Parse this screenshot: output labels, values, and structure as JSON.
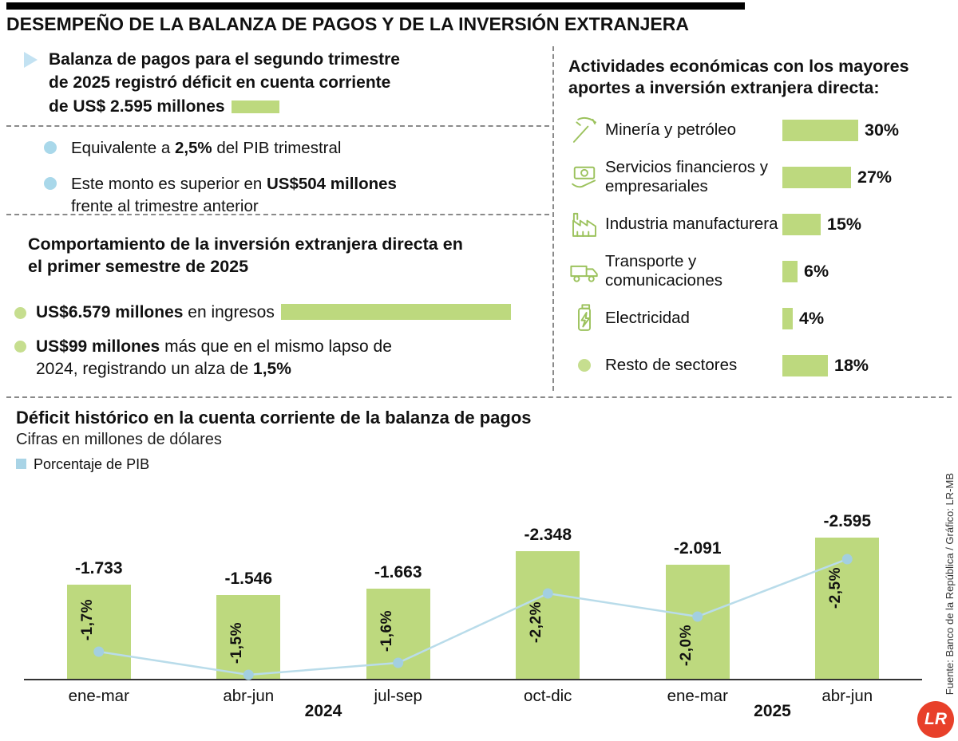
{
  "colors": {
    "green": "#bdd97e",
    "blue": "#a9d8ea",
    "red": "#e8402a"
  },
  "header": {
    "title": "DESEMPEÑO DE LA BALANZA DE PAGOS Y DE LA INVERSIÓN EXTRANJERA"
  },
  "summary": {
    "lead": "Balanza de pagos para el segundo trimestre de 2025 registró déficit en cuenta corriente de US$ 2.595 millones",
    "bullet1": {
      "pre": "Equivalente a ",
      "bold": "2,5%",
      "post": " del PIB trimestral"
    },
    "bullet2": {
      "pre": "Este monto es superior en ",
      "bold": "US$504 millones",
      "post": " frente al trimestre anterior"
    }
  },
  "fdi": {
    "heading": "Comportamiento de la inversión extranjera directa en el primer semestre de 2025",
    "item1": {
      "bold": "US$6.579 millones",
      "post": " en ingresos"
    },
    "item2": {
      "bold": "US$99 millones",
      "mid": " más que en el mismo lapso de 2024, registrando un alza de ",
      "bold2": "1,5%"
    }
  },
  "sectors": {
    "heading": "Actividades económicas con los mayores aportes a inversión extranjera directa:",
    "items": [
      {
        "icon": "mining-icon",
        "label": "Minería y petróleo",
        "value": 30,
        "pct": "30%"
      },
      {
        "icon": "financial-services-icon",
        "label": "Servicios financieros y empresariales",
        "value": 27,
        "pct": "27%"
      },
      {
        "icon": "manufacturing-icon",
        "label": "Industria manufacturera",
        "value": 15,
        "pct": "15%"
      },
      {
        "icon": "transport-icon",
        "label": "Transporte y comunicaciones",
        "value": 6,
        "pct": "6%"
      },
      {
        "icon": "electricity-icon",
        "label": "Electricidad",
        "value": 4,
        "pct": "4%"
      },
      {
        "icon": "circle-bullet-icon",
        "label": "Resto de sectores",
        "value": 18,
        "pct": "18%"
      }
    ]
  },
  "chart_data": {
    "type": "bar",
    "title": "Déficit histórico en la cuenta corriente de la balanza de pagos",
    "subtitle": "Cifras en millones de dólares",
    "legend": "Porcentaje de PIB",
    "categories": [
      "ene-mar",
      "abr-jun",
      "jul-sep",
      "oct-dic",
      "ene-mar",
      "abr-jun"
    ],
    "bars": {
      "name": "Déficit en cuenta corriente (millones de dólares)",
      "values": [
        -1733,
        -1546,
        -1663,
        -2348,
        -2091,
        -2595
      ],
      "labels": [
        "-1.733",
        "-1.546",
        "-1.663",
        "-2.348",
        "-2.091",
        "-2.595"
      ]
    },
    "line": {
      "name": "Porcentaje de PIB",
      "values": [
        -1.7,
        -1.5,
        -1.6,
        -2.2,
        -2.0,
        -2.5
      ],
      "labels": [
        "-1,7%",
        "-1,5%",
        "-1,6%",
        "-2,2%",
        "-2,0%",
        "-2,5%"
      ]
    },
    "years": [
      {
        "label": "2024",
        "span": [
          0,
          3
        ]
      },
      {
        "label": "2025",
        "span": [
          4,
          5
        ]
      }
    ],
    "ylim": [
      -2700,
      0
    ],
    "grid": false,
    "legend_position": "top-left"
  },
  "footer": {
    "source": "Fuente: Banco de la República / Gráfico: LR-MB",
    "logo": "LR"
  }
}
